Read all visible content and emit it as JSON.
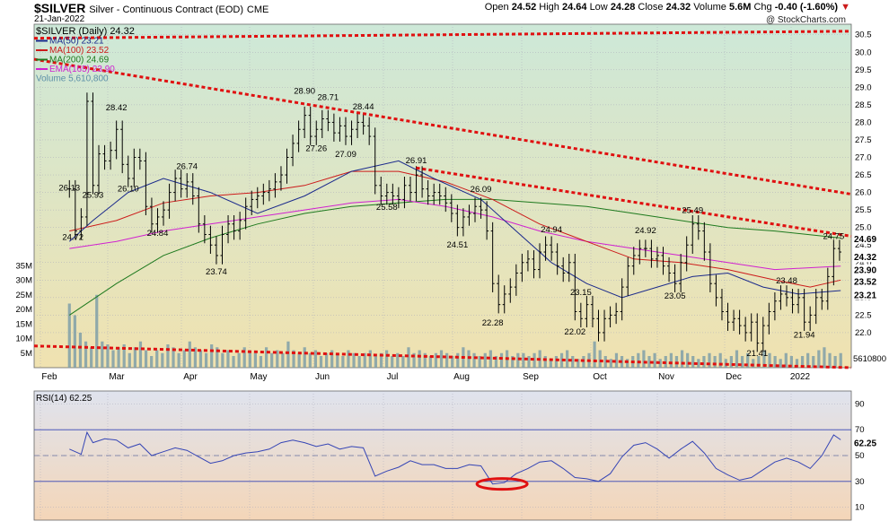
{
  "header": {
    "title_symbol": "$SILVER",
    "title_rest": "Silver - Continuous Contract (EOD)",
    "exchange": "CME",
    "date": "21-Jan-2022",
    "copyright": "@ StockCharts.com",
    "quote": {
      "open_label": "Open",
      "open": "24.52",
      "high_label": "High",
      "high": "24.64",
      "low_label": "Low",
      "low": "24.28",
      "close_label": "Close",
      "close": "24.32",
      "volume_label": "Volume",
      "volume": "5.6M",
      "chg_label": "Chg",
      "chg": "-0.40 (-1.60%)"
    }
  },
  "legend": [
    {
      "text": "$SILVER (Daily) 24.32",
      "color": "#000000"
    },
    {
      "text": "MA(50) 23.21",
      "color": "#1b2a8c"
    },
    {
      "text": "MA(100) 23.52",
      "color": "#cc1a1a"
    },
    {
      "text": "MA(200) 24.69",
      "color": "#1e7a1e"
    },
    {
      "text": "EMA(165) 23.90",
      "color": "#d020d0"
    },
    {
      "text": "Volume 5,610,800",
      "color": "#5b8fa8"
    }
  ],
  "colors": {
    "price_bg_top": "#cde8d8",
    "price_bg_bottom": "#f0e2b0",
    "rsi_bg_top": "#dfe3ee",
    "rsi_bg_bottom": "#f4d6b8",
    "ma50": "#1b2a8c",
    "ma100": "#cc1a1a",
    "ma200": "#1e7a1e",
    "ema165": "#d020d0",
    "trend": "#e01010",
    "volume": "#7f9fa8",
    "rsi": "#3545b5"
  },
  "chart_data": {
    "type": "line",
    "subtype": "ohlc-bars",
    "x_month_labels": [
      "Feb",
      "Mar",
      "Apr",
      "May",
      "Jun",
      "Jul",
      "Aug",
      "Sep",
      "Oct",
      "Nov",
      "Dec",
      "2022"
    ],
    "price_axis": {
      "ticks": [
        "30.5",
        "30.0",
        "29.5",
        "29.0",
        "28.5",
        "28.0",
        "27.5",
        "27.0",
        "26.5",
        "26.0",
        "25.5",
        "25.0",
        "24.5",
        "24.0",
        "23.5",
        "23.0",
        "22.5",
        "22.0"
      ],
      "ylim": [
        21.0,
        30.8
      ]
    },
    "volume_axis": {
      "ticks": [
        "35M",
        "30M",
        "25M",
        "20M",
        "15M",
        "10M",
        "5M"
      ],
      "ylim": [
        0,
        40
      ]
    },
    "rsi_axis": {
      "ticks": [
        "90",
        "70",
        "50",
        "30",
        "10"
      ],
      "ylim": [
        0,
        100
      ]
    },
    "right_labels": {
      "ma200": "24.69",
      "close": "24.32",
      "ema": "23.90",
      "ma100": "23.52",
      "ma50": "23.21",
      "volume": "5610800",
      "rsi": "62.25"
    },
    "price_annotations": [
      {
        "x": 0.0,
        "y": 26.13,
        "label": "26.13"
      },
      {
        "x": 0.3,
        "y": 24.72,
        "label": "24.72"
      },
      {
        "x": 2.0,
        "y": 25.93,
        "label": "25.93"
      },
      {
        "x": 4.0,
        "y": 28.42,
        "label": "28.42"
      },
      {
        "x": 5.0,
        "y": 26.1,
        "label": "26.10"
      },
      {
        "x": 7.5,
        "y": 24.84,
        "label": "24.84"
      },
      {
        "x": 10.0,
        "y": 26.74,
        "label": "26.74"
      },
      {
        "x": 12.5,
        "y": 23.74,
        "label": "23.74"
      },
      {
        "x": 20.0,
        "y": 28.9,
        "label": "28.90"
      },
      {
        "x": 21.0,
        "y": 27.26,
        "label": "27.26"
      },
      {
        "x": 22.0,
        "y": 28.71,
        "label": "28.71"
      },
      {
        "x": 23.5,
        "y": 27.09,
        "label": "27.09"
      },
      {
        "x": 25.0,
        "y": 28.44,
        "label": "28.44"
      },
      {
        "x": 27.0,
        "y": 25.58,
        "label": "25.58"
      },
      {
        "x": 29.5,
        "y": 26.91,
        "label": "26.91"
      },
      {
        "x": 33.0,
        "y": 24.51,
        "label": "24.51"
      },
      {
        "x": 35.0,
        "y": 26.09,
        "label": "26.09"
      },
      {
        "x": 36.0,
        "y": 22.28,
        "label": "22.28"
      },
      {
        "x": 41.0,
        "y": 24.94,
        "label": "24.94"
      },
      {
        "x": 43.5,
        "y": 23.15,
        "label": "23.15"
      },
      {
        "x": 43.0,
        "y": 22.02,
        "label": "22.02"
      },
      {
        "x": 49.0,
        "y": 24.92,
        "label": "24.92"
      },
      {
        "x": 51.5,
        "y": 23.05,
        "label": "23.05"
      },
      {
        "x": 53.0,
        "y": 25.49,
        "label": "25.49"
      },
      {
        "x": 58.5,
        "y": 21.41,
        "label": "21.41"
      },
      {
        "x": 61.0,
        "y": 23.48,
        "label": "23.48"
      },
      {
        "x": 62.5,
        "y": 21.94,
        "label": "21.94"
      },
      {
        "x": 65.0,
        "y": 24.75,
        "label": "24.75"
      }
    ],
    "close_series": [
      {
        "w": 0.0,
        "c": 26.1
      },
      {
        "w": 0.5,
        "c": 24.9
      },
      {
        "w": 1.0,
        "c": 25.3
      },
      {
        "w": 1.5,
        "c": 28.6
      },
      {
        "w": 2.0,
        "c": 26.2
      },
      {
        "w": 2.5,
        "c": 27.1
      },
      {
        "w": 3.0,
        "c": 26.9
      },
      {
        "w": 3.5,
        "c": 27.2
      },
      {
        "w": 4.0,
        "c": 27.8
      },
      {
        "w": 4.5,
        "c": 26.8
      },
      {
        "w": 5.0,
        "c": 26.4
      },
      {
        "w": 5.5,
        "c": 27.0
      },
      {
        "w": 6.0,
        "c": 26.9
      },
      {
        "w": 6.5,
        "c": 25.6
      },
      {
        "w": 7.0,
        "c": 25.1
      },
      {
        "w": 7.5,
        "c": 25.3
      },
      {
        "w": 8.0,
        "c": 25.5
      },
      {
        "w": 8.5,
        "c": 26.0
      },
      {
        "w": 9.0,
        "c": 26.4
      },
      {
        "w": 9.5,
        "c": 26.1
      },
      {
        "w": 10.0,
        "c": 26.3
      },
      {
        "w": 10.5,
        "c": 25.9
      },
      {
        "w": 11.0,
        "c": 25.1
      },
      {
        "w": 11.5,
        "c": 24.8
      },
      {
        "w": 12.0,
        "c": 24.5
      },
      {
        "w": 12.5,
        "c": 24.2
      },
      {
        "w": 13.0,
        "c": 24.8
      },
      {
        "w": 13.5,
        "c": 25.1
      },
      {
        "w": 14.0,
        "c": 24.9
      },
      {
        "w": 14.5,
        "c": 25.2
      },
      {
        "w": 15.0,
        "c": 25.6
      },
      {
        "w": 15.5,
        "c": 25.8
      },
      {
        "w": 16.0,
        "c": 25.9
      },
      {
        "w": 16.5,
        "c": 26.0
      },
      {
        "w": 17.0,
        "c": 26.1
      },
      {
        "w": 17.5,
        "c": 26.3
      },
      {
        "w": 18.0,
        "c": 26.5
      },
      {
        "w": 18.5,
        "c": 27.0
      },
      {
        "w": 19.0,
        "c": 27.4
      },
      {
        "w": 19.5,
        "c": 27.8
      },
      {
        "w": 20.0,
        "c": 28.2
      },
      {
        "w": 20.5,
        "c": 27.6
      },
      {
        "w": 21.0,
        "c": 27.8
      },
      {
        "w": 21.5,
        "c": 28.1
      },
      {
        "w": 22.0,
        "c": 28.0
      },
      {
        "w": 22.5,
        "c": 27.7
      },
      {
        "w": 23.0,
        "c": 27.9
      },
      {
        "w": 23.5,
        "c": 27.6
      },
      {
        "w": 24.0,
        "c": 27.8
      },
      {
        "w": 24.5,
        "c": 28.0
      },
      {
        "w": 25.0,
        "c": 27.9
      },
      {
        "w": 25.5,
        "c": 27.6
      },
      {
        "w": 26.0,
        "c": 26.2
      },
      {
        "w": 26.5,
        "c": 25.9
      },
      {
        "w": 27.0,
        "c": 26.0
      },
      {
        "w": 27.5,
        "c": 25.9
      },
      {
        "w": 28.0,
        "c": 25.8
      },
      {
        "w": 28.5,
        "c": 26.2
      },
      {
        "w": 29.0,
        "c": 26.0
      },
      {
        "w": 29.5,
        "c": 26.5
      },
      {
        "w": 30.0,
        "c": 26.1
      },
      {
        "w": 30.5,
        "c": 25.9
      },
      {
        "w": 31.0,
        "c": 26.0
      },
      {
        "w": 31.5,
        "c": 25.9
      },
      {
        "w": 32.0,
        "c": 25.7
      },
      {
        "w": 32.5,
        "c": 25.4
      },
      {
        "w": 33.0,
        "c": 25.0
      },
      {
        "w": 33.5,
        "c": 25.3
      },
      {
        "w": 34.0,
        "c": 25.4
      },
      {
        "w": 34.5,
        "c": 25.6
      },
      {
        "w": 35.0,
        "c": 25.5
      },
      {
        "w": 35.5,
        "c": 24.9
      },
      {
        "w": 36.0,
        "c": 23.4
      },
      {
        "w": 36.5,
        "c": 22.8
      },
      {
        "w": 37.0,
        "c": 23.1
      },
      {
        "w": 37.5,
        "c": 23.3
      },
      {
        "w": 38.0,
        "c": 23.7
      },
      {
        "w": 38.5,
        "c": 24.0
      },
      {
        "w": 39.0,
        "c": 24.1
      },
      {
        "w": 39.5,
        "c": 23.8
      },
      {
        "w": 40.0,
        "c": 24.3
      },
      {
        "w": 40.5,
        "c": 24.5
      },
      {
        "w": 41.0,
        "c": 24.3
      },
      {
        "w": 41.5,
        "c": 23.9
      },
      {
        "w": 42.0,
        "c": 23.7
      },
      {
        "w": 42.5,
        "c": 24.0
      },
      {
        "w": 43.0,
        "c": 22.6
      },
      {
        "w": 43.5,
        "c": 22.4
      },
      {
        "w": 44.0,
        "c": 22.8
      },
      {
        "w": 44.5,
        "c": 22.4
      },
      {
        "w": 45.0,
        "c": 22.0
      },
      {
        "w": 45.5,
        "c": 22.4
      },
      {
        "w": 46.0,
        "c": 22.5
      },
      {
        "w": 46.5,
        "c": 22.6
      },
      {
        "w": 47.0,
        "c": 23.3
      },
      {
        "w": 47.5,
        "c": 23.9
      },
      {
        "w": 48.0,
        "c": 24.2
      },
      {
        "w": 48.5,
        "c": 24.4
      },
      {
        "w": 49.0,
        "c": 24.4
      },
      {
        "w": 49.5,
        "c": 24.1
      },
      {
        "w": 50.0,
        "c": 24.2
      },
      {
        "w": 50.5,
        "c": 23.9
      },
      {
        "w": 51.0,
        "c": 23.7
      },
      {
        "w": 51.5,
        "c": 23.4
      },
      {
        "w": 52.0,
        "c": 24.0
      },
      {
        "w": 52.5,
        "c": 24.5
      },
      {
        "w": 53.0,
        "c": 25.1
      },
      {
        "w": 53.5,
        "c": 24.9
      },
      {
        "w": 54.0,
        "c": 24.3
      },
      {
        "w": 54.5,
        "c": 23.4
      },
      {
        "w": 55.0,
        "c": 23.0
      },
      {
        "w": 55.5,
        "c": 22.6
      },
      {
        "w": 56.0,
        "c": 22.3
      },
      {
        "w": 56.5,
        "c": 22.4
      },
      {
        "w": 57.0,
        "c": 22.2
      },
      {
        "w": 57.5,
        "c": 22.0
      },
      {
        "w": 58.0,
        "c": 22.3
      },
      {
        "w": 58.5,
        "c": 21.7
      },
      {
        "w": 59.0,
        "c": 22.2
      },
      {
        "w": 59.5,
        "c": 22.6
      },
      {
        "w": 60.0,
        "c": 22.9
      },
      {
        "w": 60.5,
        "c": 23.1
      },
      {
        "w": 61.0,
        "c": 23.0
      },
      {
        "w": 61.5,
        "c": 22.8
      },
      {
        "w": 62.0,
        "c": 23.0
      },
      {
        "w": 62.5,
        "c": 22.3
      },
      {
        "w": 63.0,
        "c": 22.5
      },
      {
        "w": 63.5,
        "c": 23.0
      },
      {
        "w": 64.0,
        "c": 22.9
      },
      {
        "w": 64.5,
        "c": 23.6
      },
      {
        "w": 65.0,
        "c": 24.4
      },
      {
        "w": 65.5,
        "c": 24.3
      }
    ],
    "ma50": [
      [
        0,
        24.6
      ],
      [
        2,
        25.2
      ],
      [
        5,
        26.0
      ],
      [
        8,
        26.4
      ],
      [
        12,
        26.0
      ],
      [
        16,
        25.4
      ],
      [
        20,
        25.9
      ],
      [
        24,
        26.6
      ],
      [
        28,
        26.9
      ],
      [
        31,
        26.4
      ],
      [
        35,
        25.8
      ],
      [
        38,
        24.9
      ],
      [
        41,
        24.0
      ],
      [
        44,
        23.4
      ],
      [
        47,
        23.0
      ],
      [
        50,
        23.3
      ],
      [
        53,
        23.6
      ],
      [
        56,
        23.7
      ],
      [
        59,
        23.3
      ],
      [
        62,
        23.1
      ],
      [
        65.6,
        23.2
      ]
    ],
    "ma100": [
      [
        0,
        24.9
      ],
      [
        4,
        25.2
      ],
      [
        8,
        25.7
      ],
      [
        12,
        25.9
      ],
      [
        16,
        26.0
      ],
      [
        20,
        26.2
      ],
      [
        24,
        26.6
      ],
      [
        28,
        26.6
      ],
      [
        32,
        26.3
      ],
      [
        36,
        25.8
      ],
      [
        40,
        25.1
      ],
      [
        44,
        24.6
      ],
      [
        48,
        24.1
      ],
      [
        52,
        24.0
      ],
      [
        56,
        23.8
      ],
      [
        60,
        23.5
      ],
      [
        63,
        23.3
      ],
      [
        65.6,
        23.5
      ]
    ],
    "ma200": [
      [
        0,
        22.5
      ],
      [
        4,
        23.4
      ],
      [
        8,
        24.2
      ],
      [
        12,
        24.7
      ],
      [
        16,
        25.1
      ],
      [
        20,
        25.4
      ],
      [
        24,
        25.6
      ],
      [
        28,
        25.7
      ],
      [
        32,
        25.8
      ],
      [
        36,
        25.8
      ],
      [
        40,
        25.7
      ],
      [
        44,
        25.6
      ],
      [
        48,
        25.4
      ],
      [
        52,
        25.2
      ],
      [
        56,
        25.0
      ],
      [
        60,
        24.9
      ],
      [
        65.6,
        24.7
      ]
    ],
    "ema165": [
      [
        0,
        24.4
      ],
      [
        4,
        24.6
      ],
      [
        8,
        24.9
      ],
      [
        12,
        25.1
      ],
      [
        16,
        25.3
      ],
      [
        20,
        25.5
      ],
      [
        24,
        25.7
      ],
      [
        28,
        25.8
      ],
      [
        32,
        25.6
      ],
      [
        36,
        25.3
      ],
      [
        40,
        24.9
      ],
      [
        44,
        24.6
      ],
      [
        48,
        24.4
      ],
      [
        52,
        24.2
      ],
      [
        56,
        24.0
      ],
      [
        60,
        23.8
      ],
      [
        65.6,
        23.9
      ]
    ],
    "trendlines": [
      {
        "from": [
          -3,
          30.4
        ],
        "to": [
          66.5,
          30.6
        ]
      },
      {
        "from": [
          -3,
          29.8
        ],
        "to": [
          66.5,
          25.95
        ]
      },
      {
        "from": [
          29.5,
          26.7
        ],
        "to": [
          66.5,
          24.75
        ]
      },
      {
        "from": [
          -3,
          21.62
        ],
        "to": [
          66.5,
          21.0
        ]
      }
    ],
    "volume_m": [
      22,
      18,
      12,
      9,
      7,
      25,
      9,
      8,
      6,
      7,
      8,
      5,
      7,
      9,
      6,
      4,
      6,
      5,
      8,
      7,
      5,
      6,
      9,
      7,
      6,
      5,
      8,
      7,
      5,
      6,
      4,
      5,
      7,
      6,
      5,
      4,
      7,
      5,
      6,
      5,
      9,
      6,
      5,
      7,
      5,
      6,
      4,
      5,
      6,
      5,
      4,
      6,
      5,
      4,
      5,
      6,
      4,
      5,
      6,
      4,
      5,
      4,
      7,
      5,
      6,
      5,
      4,
      5,
      6,
      5,
      4,
      5,
      7,
      6,
      5,
      4,
      5,
      6,
      4,
      5,
      6,
      4,
      5,
      5,
      4,
      5,
      6,
      4,
      3,
      4,
      5,
      6,
      4,
      3,
      4,
      5,
      9,
      6,
      4,
      3,
      5,
      4,
      3,
      4,
      5,
      6,
      4,
      5,
      3,
      4,
      5,
      4,
      6,
      5,
      4,
      3,
      4,
      5,
      4,
      5,
      3,
      4,
      6,
      4,
      5,
      3,
      4,
      6,
      5,
      4,
      3,
      5,
      4,
      3,
      4,
      5,
      4,
      6,
      7,
      5,
      4,
      5
    ],
    "rsi": [
      [
        0,
        55
      ],
      [
        1,
        51
      ],
      [
        1.5,
        68
      ],
      [
        2,
        60
      ],
      [
        3,
        63
      ],
      [
        4,
        62
      ],
      [
        5,
        56
      ],
      [
        6,
        59
      ],
      [
        7,
        50
      ],
      [
        8,
        53
      ],
      [
        9,
        56
      ],
      [
        10,
        54
      ],
      [
        11,
        49
      ],
      [
        12,
        44
      ],
      [
        13,
        46
      ],
      [
        14,
        50
      ],
      [
        15,
        52
      ],
      [
        16,
        53
      ],
      [
        17,
        55
      ],
      [
        18,
        60
      ],
      [
        19,
        62
      ],
      [
        20,
        60
      ],
      [
        21,
        57
      ],
      [
        22,
        59
      ],
      [
        23,
        55
      ],
      [
        24,
        57
      ],
      [
        25,
        56
      ],
      [
        26,
        34
      ],
      [
        27,
        38
      ],
      [
        28,
        41
      ],
      [
        29,
        46
      ],
      [
        30,
        43
      ],
      [
        31,
        43
      ],
      [
        32,
        40
      ],
      [
        33,
        40
      ],
      [
        34,
        43
      ],
      [
        35,
        42
      ],
      [
        36,
        28
      ],
      [
        37,
        29
      ],
      [
        38,
        36
      ],
      [
        39,
        40
      ],
      [
        40,
        45
      ],
      [
        41,
        46
      ],
      [
        42,
        40
      ],
      [
        43,
        33
      ],
      [
        44,
        32
      ],
      [
        45,
        30
      ],
      [
        46,
        36
      ],
      [
        47,
        49
      ],
      [
        48,
        58
      ],
      [
        49,
        60
      ],
      [
        50,
        55
      ],
      [
        51,
        48
      ],
      [
        52,
        55
      ],
      [
        53,
        61
      ],
      [
        54,
        52
      ],
      [
        55,
        40
      ],
      [
        56,
        35
      ],
      [
        57,
        31
      ],
      [
        58,
        33
      ],
      [
        59,
        39
      ],
      [
        60,
        45
      ],
      [
        61,
        48
      ],
      [
        62,
        45
      ],
      [
        63,
        40
      ],
      [
        64,
        50
      ],
      [
        65,
        66
      ],
      [
        65.6,
        62.25
      ]
    ]
  }
}
